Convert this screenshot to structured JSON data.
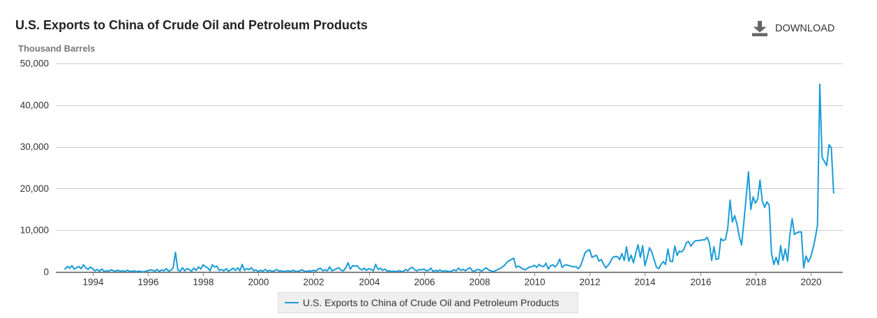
{
  "header": {
    "download_label": "DOWNLOAD",
    "download_icon": "download-icon",
    "icon_color": "#666666"
  },
  "chart_data": {
    "type": "line",
    "title": "U.S. Exports to China of Crude Oil and Petroleum Products",
    "ylabel": "Thousand Barrels",
    "ylim": [
      0,
      50000
    ],
    "yticks": [
      0,
      10000,
      20000,
      30000,
      40000,
      50000
    ],
    "ytick_labels": [
      "0",
      "10,000",
      "20,000",
      "30,000",
      "40,000",
      "50,000"
    ],
    "xlim": [
      "1992-09",
      "2021-03"
    ],
    "xtick_labels": [
      "1994",
      "1996",
      "1998",
      "2000",
      "2002",
      "2004",
      "2006",
      "2008",
      "2010",
      "2012",
      "2014",
      "2016",
      "2018",
      "2020"
    ],
    "grid": "horizontal",
    "legend": "bottom-center",
    "x": [
      "1993-01",
      "1993-02",
      "1993-03",
      "1993-04",
      "1993-05",
      "1993-06",
      "1993-07",
      "1993-08",
      "1993-09",
      "1993-10",
      "1993-11",
      "1993-12",
      "1994-01",
      "1994-02",
      "1994-03",
      "1994-04",
      "1994-05",
      "1994-06",
      "1994-07",
      "1994-08",
      "1994-09",
      "1994-10",
      "1994-11",
      "1994-12",
      "1995-01",
      "1995-02",
      "1995-03",
      "1995-04",
      "1995-05",
      "1995-06",
      "1995-07",
      "1995-08",
      "1995-09",
      "1995-10",
      "1995-11",
      "1995-12",
      "1996-01",
      "1996-02",
      "1996-03",
      "1996-04",
      "1996-05",
      "1996-06",
      "1996-07",
      "1996-08",
      "1996-09",
      "1996-10",
      "1996-11",
      "1996-12",
      "1997-01",
      "1997-02",
      "1997-03",
      "1997-04",
      "1997-05",
      "1997-06",
      "1997-07",
      "1997-08",
      "1997-09",
      "1997-10",
      "1997-11",
      "1997-12",
      "1998-01",
      "1998-02",
      "1998-03",
      "1998-04",
      "1998-05",
      "1998-06",
      "1998-07",
      "1998-08",
      "1998-09",
      "1998-10",
      "1998-11",
      "1998-12",
      "1999-01",
      "1999-02",
      "1999-03",
      "1999-04",
      "1999-05",
      "1999-06",
      "1999-07",
      "1999-08",
      "1999-09",
      "1999-10",
      "1999-11",
      "1999-12",
      "2000-01",
      "2000-02",
      "2000-03",
      "2000-04",
      "2000-05",
      "2000-06",
      "2000-07",
      "2000-08",
      "2000-09",
      "2000-10",
      "2000-11",
      "2000-12",
      "2001-01",
      "2001-02",
      "2001-03",
      "2001-04",
      "2001-05",
      "2001-06",
      "2001-07",
      "2001-08",
      "2001-09",
      "2001-10",
      "2001-11",
      "2001-12",
      "2002-01",
      "2002-02",
      "2002-03",
      "2002-04",
      "2002-05",
      "2002-06",
      "2002-07",
      "2002-08",
      "2002-09",
      "2002-10",
      "2002-11",
      "2002-12",
      "2003-01",
      "2003-02",
      "2003-03",
      "2003-04",
      "2003-05",
      "2003-06",
      "2003-07",
      "2003-08",
      "2003-09",
      "2003-10",
      "2003-11",
      "2003-12",
      "2004-01",
      "2004-02",
      "2004-03",
      "2004-04",
      "2004-05",
      "2004-06",
      "2004-07",
      "2004-08",
      "2004-09",
      "2004-10",
      "2004-11",
      "2004-12",
      "2005-01",
      "2005-02",
      "2005-03",
      "2005-04",
      "2005-05",
      "2005-06",
      "2005-07",
      "2005-08",
      "2005-09",
      "2005-10",
      "2005-11",
      "2005-12",
      "2006-01",
      "2006-02",
      "2006-03",
      "2006-04",
      "2006-05",
      "2006-06",
      "2006-07",
      "2006-08",
      "2006-09",
      "2006-10",
      "2006-11",
      "2006-12",
      "2007-01",
      "2007-02",
      "2007-03",
      "2007-04",
      "2007-05",
      "2007-06",
      "2007-07",
      "2007-08",
      "2007-09",
      "2007-10",
      "2007-11",
      "2007-12",
      "2008-01",
      "2008-02",
      "2008-03",
      "2008-04",
      "2008-05",
      "2008-06",
      "2008-07",
      "2008-08",
      "2008-09",
      "2008-10",
      "2008-11",
      "2008-12",
      "2009-01",
      "2009-02",
      "2009-03",
      "2009-04",
      "2009-05",
      "2009-06",
      "2009-07",
      "2009-08",
      "2009-09",
      "2009-10",
      "2009-11",
      "2009-12",
      "2010-01",
      "2010-02",
      "2010-03",
      "2010-04",
      "2010-05",
      "2010-06",
      "2010-07",
      "2010-08",
      "2010-09",
      "2010-10",
      "2010-11",
      "2010-12",
      "2011-01",
      "2011-02",
      "2011-03",
      "2011-04",
      "2011-05",
      "2011-06",
      "2011-07",
      "2011-08",
      "2011-09",
      "2011-10",
      "2011-11",
      "2011-12",
      "2012-01",
      "2012-02",
      "2012-03",
      "2012-04",
      "2012-05",
      "2012-06",
      "2012-07",
      "2012-08",
      "2012-09",
      "2012-10",
      "2012-11",
      "2012-12",
      "2013-01",
      "2013-02",
      "2013-03",
      "2013-04",
      "2013-05",
      "2013-06",
      "2013-07",
      "2013-08",
      "2013-09",
      "2013-10",
      "2013-11",
      "2013-12",
      "2014-01",
      "2014-02",
      "2014-03",
      "2014-04",
      "2014-05",
      "2014-06",
      "2014-07",
      "2014-08",
      "2014-09",
      "2014-10",
      "2014-11",
      "2014-12",
      "2015-01",
      "2015-02",
      "2015-03",
      "2015-04",
      "2015-05",
      "2015-06",
      "2015-07",
      "2015-08",
      "2015-09",
      "2015-10",
      "2015-11",
      "2015-12",
      "2016-01",
      "2016-02",
      "2016-03",
      "2016-04",
      "2016-05",
      "2016-06",
      "2016-07",
      "2016-08",
      "2016-09",
      "2016-10",
      "2016-11",
      "2016-12",
      "2017-01",
      "2017-02",
      "2017-03",
      "2017-04",
      "2017-05",
      "2017-06",
      "2017-07",
      "2017-08",
      "2017-09",
      "2017-10",
      "2017-11",
      "2017-12",
      "2018-01",
      "2018-02",
      "2018-03",
      "2018-04",
      "2018-05",
      "2018-06",
      "2018-07",
      "2018-08",
      "2018-09",
      "2018-10",
      "2018-11",
      "2018-12",
      "2019-01",
      "2019-02",
      "2019-03",
      "2019-04",
      "2019-05",
      "2019-06",
      "2019-07",
      "2019-08",
      "2019-09",
      "2019-10",
      "2019-11",
      "2019-12",
      "2020-01",
      "2020-02",
      "2020-03",
      "2020-04",
      "2020-05",
      "2020-06",
      "2020-07",
      "2020-08",
      "2020-09",
      "2020-10",
      "2020-11"
    ],
    "series": [
      {
        "name": "U.S. Exports to China of Crude Oil and Petroleum Products",
        "color": "#1a9bd7",
        "values": [
          700,
          1300,
          900,
          1500,
          700,
          1000,
          1300,
          800,
          1700,
          1000,
          600,
          1200,
          800,
          300,
          600,
          200,
          700,
          100,
          300,
          200,
          500,
          300,
          200,
          400,
          200,
          300,
          100,
          400,
          200,
          100,
          300,
          50,
          200,
          100,
          50,
          150,
          300,
          500,
          400,
          200,
          600,
          100,
          500,
          300,
          800,
          200,
          400,
          1000,
          4700,
          500,
          200,
          1000,
          300,
          800,
          600,
          200,
          900,
          400,
          1200,
          700,
          1700,
          1300,
          1000,
          300,
          1700,
          1200,
          1400,
          400,
          600,
          300,
          800,
          200,
          500,
          900,
          400,
          1000,
          300,
          1800,
          400,
          800,
          600,
          1000,
          300,
          500,
          100,
          400,
          200,
          600,
          200,
          400,
          100,
          300,
          600,
          200,
          300,
          100,
          200,
          300,
          100,
          400,
          200,
          100,
          300,
          500,
          200,
          100,
          300,
          200,
          400,
          200,
          700,
          900,
          300,
          500,
          300,
          1200,
          300,
          500,
          800,
          1000,
          400,
          300,
          1000,
          2200,
          700,
          1500,
          1400,
          1500,
          800,
          500,
          900,
          400,
          800,
          600,
          300,
          1800,
          600,
          900,
          400,
          700,
          200,
          300,
          100,
          200,
          100,
          300,
          200,
          50,
          600,
          300,
          900,
          1100,
          500,
          300,
          600,
          500,
          700,
          300,
          400,
          900,
          100,
          400,
          200,
          500,
          100,
          300,
          200,
          100,
          200,
          500,
          300,
          900,
          400,
          600,
          300,
          700,
          1000,
          300,
          200,
          600,
          500,
          200,
          600,
          1000,
          500,
          300,
          100,
          300,
          600,
          800,
          1200,
          1600,
          2300,
          2700,
          3000,
          3300,
          1100,
          1400,
          1100,
          700,
          500,
          900,
          1200,
          1300,
          1600,
          1100,
          1800,
          1400,
          1300,
          2100,
          700,
          1500,
          1700,
          1200,
          1900,
          3100,
          1100,
          1600,
          1700,
          1500,
          1400,
          1200,
          1300,
          800,
          1400,
          3000,
          4600,
          5100,
          5300,
          3500,
          3800,
          4000,
          2600,
          3000,
          1900,
          1000,
          1600,
          2400,
          3500,
          3700,
          3700,
          3000,
          4400,
          2800,
          6000,
          2600,
          4000,
          2200,
          4500,
          6500,
          3500,
          6300,
          1500,
          3500,
          5800,
          4800,
          3000,
          1200,
          800,
          1800,
          2500,
          1800,
          5500,
          2600,
          2500,
          6200,
          4000,
          5000,
          4800,
          5500,
          7000,
          7300,
          6200,
          7000,
          7500,
          7500,
          7600,
          7700,
          7700,
          8300,
          7000,
          2800,
          6000,
          3000,
          3200,
          8000,
          7500,
          7800,
          10500,
          17200,
          12000,
          13500,
          11500,
          8500,
          6500,
          12000,
          18000,
          24000,
          15000,
          18000,
          16500,
          17500,
          22000,
          17000,
          15500,
          16800,
          16000,
          4500,
          1800,
          3500,
          1800,
          6300,
          2800,
          5500,
          2600,
          8800,
          12800,
          9000,
          9400,
          9600,
          9600,
          1000,
          3800,
          2400,
          3500,
          5500,
          8000,
          11200,
          45000,
          27500,
          26500,
          25500,
          30500,
          29800,
          19000
        ]
      }
    ]
  }
}
